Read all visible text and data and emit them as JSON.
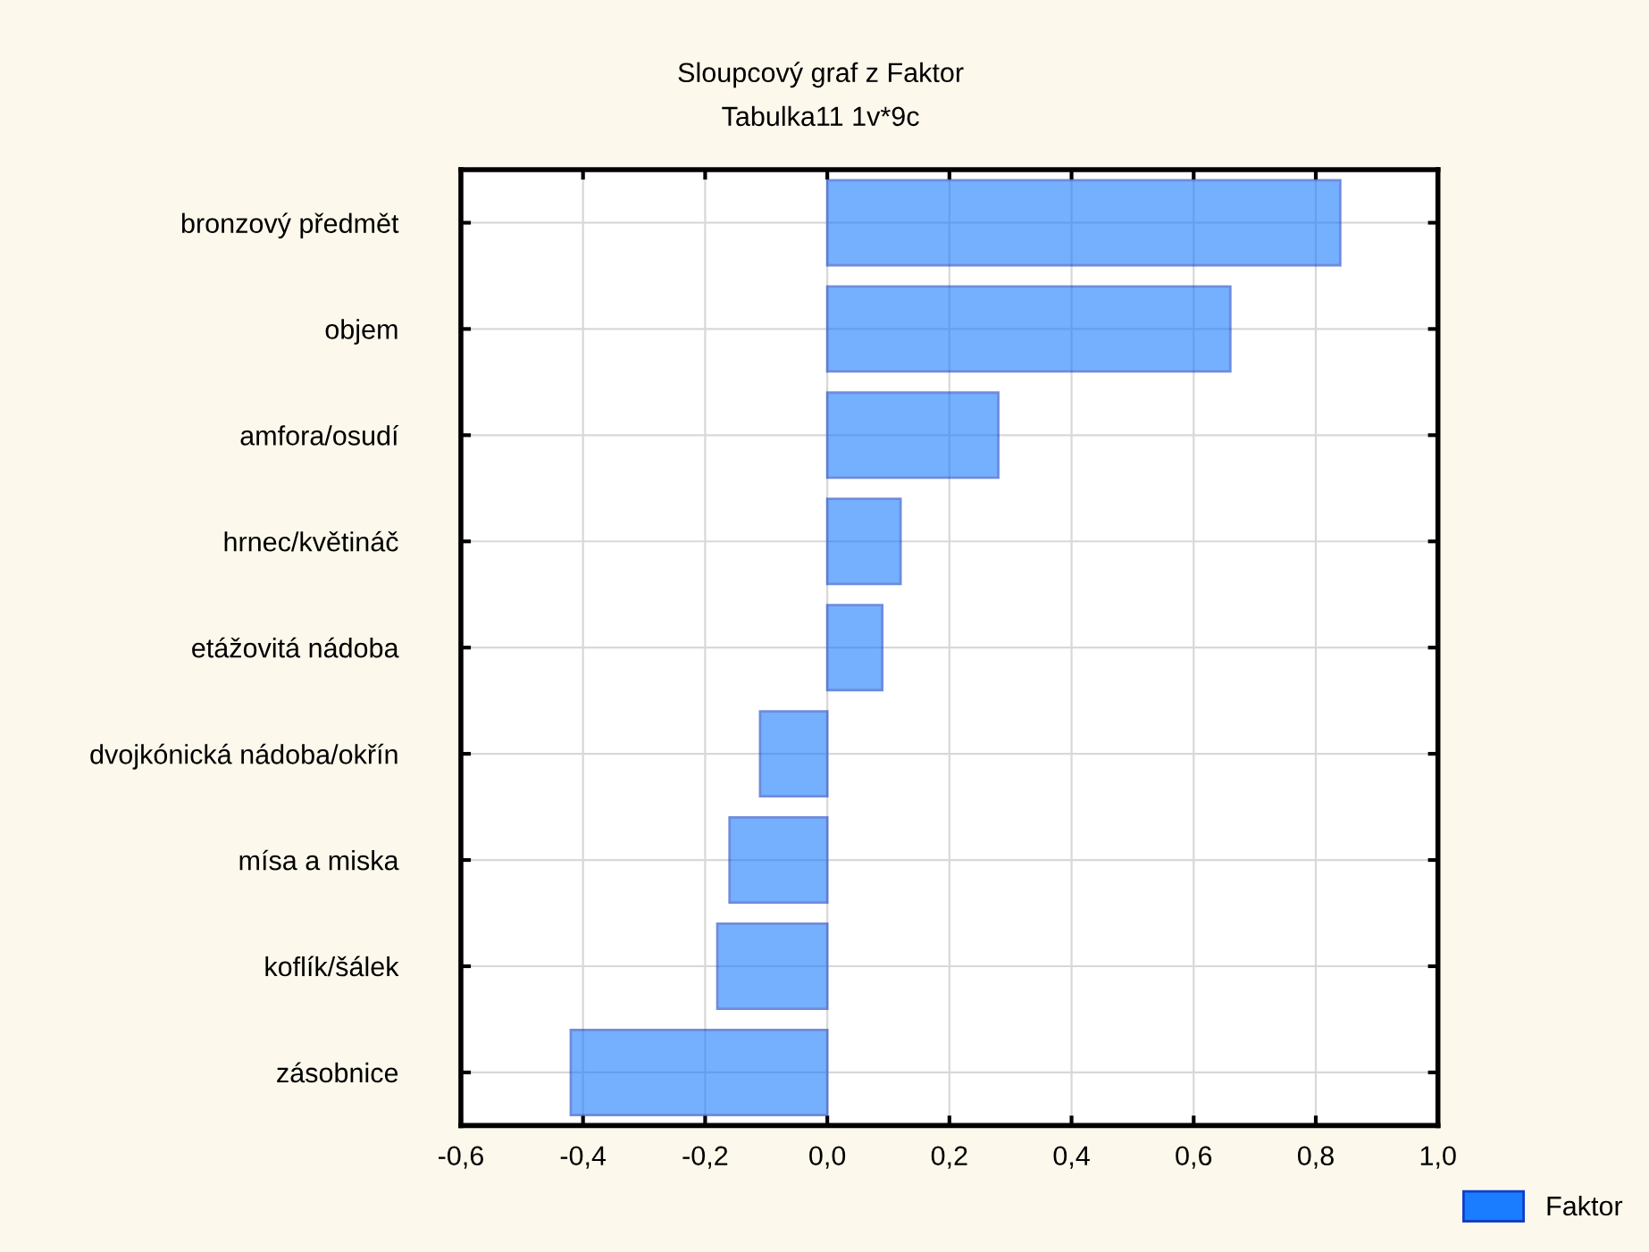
{
  "chart_data": {
    "type": "bar",
    "orientation": "horizontal",
    "title": "Sloupcový graf z Faktor",
    "subtitle": "Tabulka11 1v*9c",
    "categories": [
      "bronzový předmět",
      "objem",
      "amfora/osudí",
      "hrnec/květináč",
      "etážovitá nádoba",
      "dvojkónická nádoba/okřín",
      "mísa a miska",
      "koflík/šálek",
      "zásobnice"
    ],
    "series": [
      {
        "name": "Faktor",
        "color": "#1a7cff",
        "values": [
          0.84,
          0.66,
          0.28,
          0.12,
          0.09,
          -0.11,
          -0.16,
          -0.18,
          -0.42
        ]
      }
    ],
    "xlim": [
      -0.6,
      1.0
    ],
    "xticks": [
      {
        "value": -0.6,
        "label": "-0,6"
      },
      {
        "value": -0.4,
        "label": "-0,4"
      },
      {
        "value": -0.2,
        "label": "-0,2"
      },
      {
        "value": 0.0,
        "label": "0,0"
      },
      {
        "value": 0.2,
        "label": "0,2"
      },
      {
        "value": 0.4,
        "label": "0,4"
      },
      {
        "value": 0.6,
        "label": "0,6"
      },
      {
        "value": 0.8,
        "label": "0,8"
      },
      {
        "value": 1.0,
        "label": "1,0"
      }
    ],
    "grid": true,
    "legend": "bottom right"
  }
}
